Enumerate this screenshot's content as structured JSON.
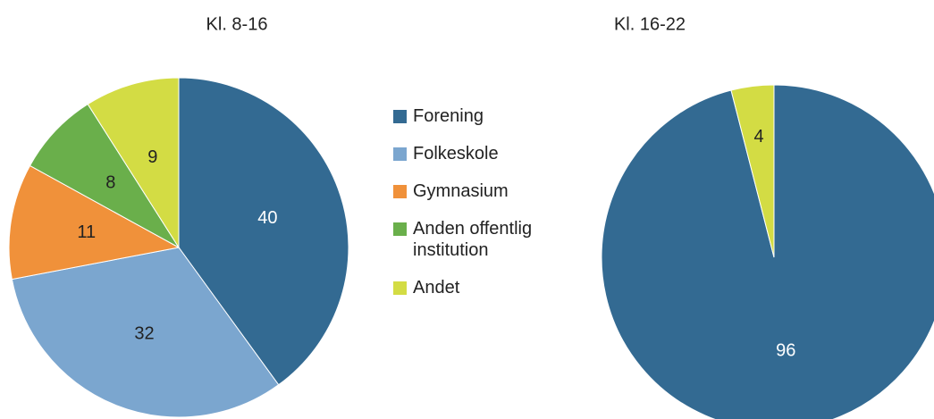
{
  "chart_data": [
    {
      "type": "pie",
      "title": "Kl. 8-16",
      "categories": [
        "Forening",
        "Folkeskole",
        "Gymnasium",
        "Anden offentlig institution",
        "Andet"
      ],
      "values": [
        40,
        32,
        11,
        8,
        9
      ],
      "colors": [
        "#336a92",
        "#7ba6cf",
        "#f0913a",
        "#6aaf4b",
        "#d3dc44"
      ]
    },
    {
      "type": "pie",
      "title": "Kl. 16-22",
      "categories": [
        "Forening",
        "Andet"
      ],
      "values": [
        96,
        4
      ],
      "colors": [
        "#336a92",
        "#d3dc44"
      ]
    }
  ]
}
